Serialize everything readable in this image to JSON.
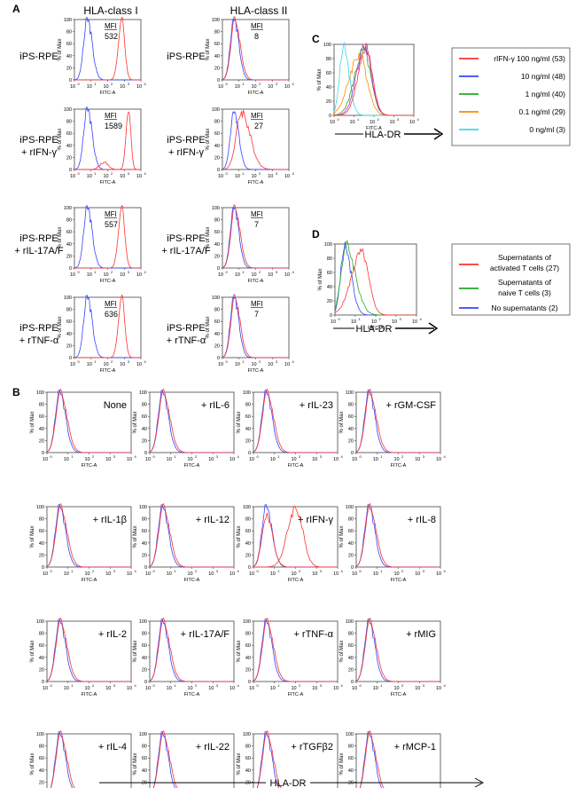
{
  "colors": {
    "red": "#ff3333",
    "blue": "#3344ff",
    "green": "#22aa22",
    "orange": "#ff8800",
    "cyan": "#33ddee",
    "purple": "#aa33cc"
  },
  "panel_labels": {
    "A": "A",
    "B": "B",
    "C": "C",
    "D": "D"
  },
  "axis_common": {
    "fitc_label": "FITC-A",
    "max_label": "% of Max",
    "yticks": [
      "0",
      "20",
      "40",
      "60",
      "80",
      "100"
    ],
    "xticks": [
      "10",
      "10",
      "10",
      "10",
      "10"
    ],
    "xsup": [
      "0",
      "1",
      "2",
      "3",
      "4"
    ],
    "hla_dr": "HLA-DR"
  },
  "panel_a": {
    "col_titles": [
      "HLA-class I",
      "HLA-class II"
    ],
    "mfi_label": "MFI",
    "rows": [
      {
        "line1": "iPS-RPE",
        "line2": "",
        "mfi": [
          "532",
          "8"
        ]
      },
      {
        "line1": "iPS-RPE",
        "line2": "+ rIFN-γ",
        "mfi": [
          "1589",
          "27"
        ]
      },
      {
        "line1": "iPS-RPE",
        "line2": "+ rIL-17A/F",
        "mfi": [
          "557",
          "7"
        ]
      },
      {
        "line1": "iPS-RPE",
        "line2": "+ rTNF-α",
        "mfi": [
          "636",
          "7"
        ]
      }
    ]
  },
  "panel_c": {
    "legend": [
      "rIFN-γ 100 ng/ml (53)",
      "10 ng/ml (48)",
      "1 ng/ml (40)",
      "0.1 ng/ml (29)",
      "0 ng/ml (3)"
    ]
  },
  "panel_d": {
    "legend": [
      "Supernatants of",
      "activated T cells (27)",
      "Supernatants of",
      "naive T cells (3)",
      "No supernatants (2)"
    ]
  },
  "panel_b": {
    "labels": [
      "None",
      "+ rIL-6",
      "+ rIL-23",
      "+ rGM-CSF",
      "+ rIL-1β",
      "+ rIL-12",
      "+ rIFN-γ",
      "+ rIL-8",
      "+ rIL-2",
      "+ rIL-17A/F",
      "+ rTNF-α",
      "+ rMIG",
      "+ rIL-4",
      "+ rIL-22",
      "+ rTGFβ2",
      "+ rMCP-1"
    ]
  },
  "chart_data": [
    {
      "panel": "A",
      "type": "area",
      "xlabel": "FITC-A",
      "ylabel": "% of Max",
      "xscale": "log",
      "xlim": [
        1,
        10000
      ],
      "ylim": [
        0,
        100
      ],
      "column": "HLA-class I",
      "rows": [
        {
          "label": "iPS-RPE",
          "MFI": 532
        },
        {
          "label": "iPS-RPE + rIFN-γ",
          "MFI": 1589
        },
        {
          "label": "iPS-RPE + rIL-17A/F",
          "MFI": 557
        },
        {
          "label": "iPS-RPE + rTNF-α",
          "MFI": 636
        }
      ],
      "series": [
        {
          "color": "blue",
          "peak_x": 6
        },
        {
          "color": "red",
          "peak_x": 600
        }
      ]
    },
    {
      "panel": "A",
      "type": "area",
      "xlabel": "FITC-A",
      "ylabel": "% of Max",
      "xscale": "log",
      "xlim": [
        1,
        10000
      ],
      "ylim": [
        0,
        100
      ],
      "column": "HLA-class II",
      "rows": [
        {
          "label": "iPS-RPE",
          "MFI": 8
        },
        {
          "label": "iPS-RPE + rIFN-γ",
          "MFI": 27
        },
        {
          "label": "iPS-RPE + rIL-17A/F",
          "MFI": 7
        },
        {
          "label": "iPS-RPE + rTNF-α",
          "MFI": 7
        }
      ]
    },
    {
      "panel": "C",
      "type": "line",
      "xlabel": "FITC-A",
      "ylabel": "% of Max",
      "xscale": "log",
      "xlim": [
        1,
        10000
      ],
      "ylim": [
        0,
        100
      ],
      "series": [
        {
          "name": "rIFN-γ 100 ng/ml (53)",
          "color": "red",
          "peak_x": 40
        },
        {
          "name": "10 ng/ml (48)",
          "color": "blue",
          "peak_x": 35
        },
        {
          "name": "1 ng/ml (40)",
          "color": "green",
          "peak_x": 30
        },
        {
          "name": "0.1 ng/ml (29)",
          "color": "orange",
          "peak_x": 25
        },
        {
          "name": "0 ng/ml (3)",
          "color": "cyan",
          "peak_x": 3
        }
      ]
    },
    {
      "panel": "D",
      "type": "line",
      "xlabel": "FITC-A",
      "ylabel": "% of Max",
      "xscale": "log",
      "xlim": [
        1,
        10000
      ],
      "ylim": [
        0,
        100
      ],
      "series": [
        {
          "name": "Supernatants of activated T cells (27)",
          "color": "red",
          "peak_x": 25
        },
        {
          "name": "Supernatants of naive T cells (3)",
          "color": "green",
          "peak_x": 3
        },
        {
          "name": "No supernatants (2)",
          "color": "blue",
          "peak_x": 2.5
        }
      ]
    },
    {
      "panel": "B",
      "type": "area",
      "xlabel": "FITC-A",
      "ylabel": "% of Max",
      "xscale": "log",
      "xlim": [
        1,
        10000
      ],
      "ylim": [
        0,
        100
      ],
      "note": "HLA-DR expression per cytokine; only + rIFN-γ shows shifted red histogram (peak ~100)"
    }
  ]
}
